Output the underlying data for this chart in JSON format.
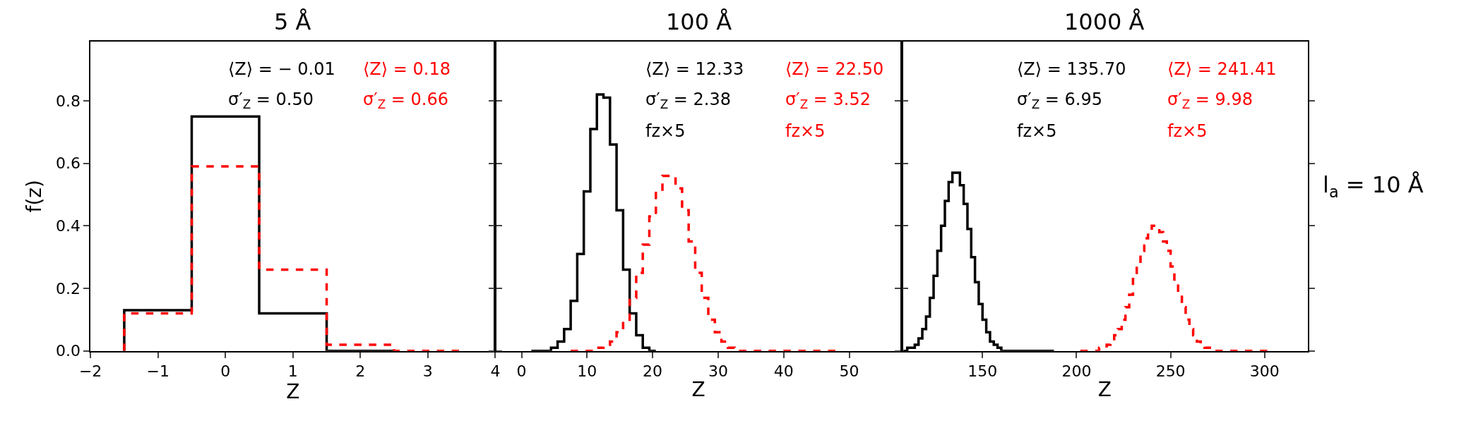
{
  "chart_data": [
    {
      "type": "step",
      "title": "5 Å",
      "xlabel": "Z",
      "ylabel": "f(z)",
      "xlim": [
        -2,
        4
      ],
      "xticks": [
        -2,
        -1,
        0,
        1,
        2,
        3,
        4
      ],
      "ylim": [
        0,
        0.99
      ],
      "yticks": [
        {
          "value": 0,
          "label": "0.0"
        },
        0.2,
        0.4,
        0.6,
        0.8
      ],
      "grid": false,
      "annotations": [
        "⟨Z⟩ = − 0.01",
        "σ′$_{Z}$ = 0.50",
        "⟨Z⟩ = 0.18",
        "σ′$_{Z}$ = 0.66"
      ],
      "series": [
        {
          "color": "#000000",
          "line_style": "solid",
          "x": [
            -1.5,
            -1.5,
            -0.5,
            0.5,
            1.5,
            2.5
          ],
          "values": [
            0.0,
            0.13,
            0.75,
            0.12,
            0.0,
            0.0
          ]
        },
        {
          "color": "#ff0000",
          "line_style": "dashed",
          "x": [
            -1.5,
            -1.5,
            -0.5,
            0.5,
            1.5,
            2.5,
            3.5
          ],
          "values": [
            0.0,
            0.12,
            0.59,
            0.26,
            0.02,
            0.0,
            0.0
          ]
        }
      ]
    },
    {
      "type": "step",
      "title": "100 Å",
      "xlabel": "Z",
      "xlim": [
        -4,
        58
      ],
      "xticks": [
        0,
        10,
        20,
        30,
        40,
        50
      ],
      "ylim": [
        0,
        0.99
      ],
      "yticks": [
        0,
        0.2,
        0.4,
        0.6,
        0.8
      ],
      "tick_labels": "x",
      "grid": false,
      "annotations": [
        "⟨Z⟩ = 12.33",
        "σ′$_{Z}$ = 2.38",
        "fz×5",
        "⟨Z⟩ = 22.50",
        "σ′$_{Z}$ = 3.52",
        "fz×5"
      ],
      "series": [
        {
          "color": "#000000",
          "line_style": "solid",
          "x": [
            1.5,
            4.5,
            5.5,
            6.5,
            7.5,
            8.5,
            9.5,
            10.5,
            11.5,
            12.5,
            13.5,
            14.5,
            15.5,
            16.5,
            17.5,
            18.5,
            19.5,
            20.5
          ],
          "values": [
            0.0,
            0.01,
            0.03,
            0.07,
            0.16,
            0.31,
            0.51,
            0.71,
            0.82,
            0.81,
            0.66,
            0.45,
            0.26,
            0.12,
            0.05,
            0.01,
            0.0,
            0.0
          ]
        },
        {
          "color": "#ff0000",
          "line_style": "dashed",
          "x": [
            7.5,
            11.5,
            12.5,
            13.5,
            14.5,
            15.5,
            16.5,
            17.5,
            18.5,
            19.5,
            20.5,
            21.5,
            22.5,
            23.5,
            24.5,
            25.5,
            26.5,
            27.5,
            28.5,
            29.5,
            30.5,
            31.5,
            32.5,
            48.5
          ],
          "values": [
            0.0,
            0.01,
            0.02,
            0.03,
            0.06,
            0.1,
            0.17,
            0.25,
            0.34,
            0.43,
            0.51,
            0.56,
            0.56,
            0.52,
            0.45,
            0.35,
            0.25,
            0.17,
            0.1,
            0.06,
            0.03,
            0.01,
            0.0,
            0.0
          ]
        }
      ]
    },
    {
      "type": "step",
      "title": "1000 Å",
      "xlabel": "Z",
      "xlim": [
        107,
        323
      ],
      "xticks": [
        150,
        200,
        250,
        300
      ],
      "ylim": [
        0,
        0.99
      ],
      "yticks": [
        0,
        0.2,
        0.4,
        0.6,
        0.8
      ],
      "tick_labels": "x",
      "grid": false,
      "annotations": [
        "⟨Z⟩ = 135.70",
        "σ′$_{Z}$ = 6.95",
        "fz×5",
        "⟨Z⟩ = 241.41",
        "σ′$_{Z}$ = 9.98",
        "fz×5"
      ],
      "series": [
        {
          "color": "#000000",
          "line_style": "solid",
          "x": [
            108,
            110,
            114,
            116,
            118,
            120,
            122,
            124,
            126,
            128,
            130,
            132,
            134,
            136,
            138,
            140,
            142,
            144,
            146,
            148,
            150,
            152,
            154,
            156,
            158,
            160,
            188
          ],
          "values": [
            0.0,
            0.01,
            0.02,
            0.04,
            0.07,
            0.11,
            0.17,
            0.24,
            0.32,
            0.4,
            0.48,
            0.54,
            0.57,
            0.57,
            0.53,
            0.47,
            0.39,
            0.3,
            0.22,
            0.15,
            0.1,
            0.06,
            0.03,
            0.02,
            0.01,
            0.0,
            0.0
          ]
        },
        {
          "color": "#ff0000",
          "line_style": "dashed",
          "x": [
            202,
            212,
            216,
            218,
            220,
            222,
            224,
            226,
            228,
            230,
            232,
            234,
            236,
            238,
            240,
            242,
            244,
            246,
            248,
            250,
            252,
            254,
            256,
            258,
            260,
            262,
            264,
            266,
            268,
            272,
            302
          ],
          "values": [
            0.0,
            0.01,
            0.02,
            0.03,
            0.05,
            0.07,
            0.1,
            0.14,
            0.18,
            0.23,
            0.28,
            0.32,
            0.36,
            0.38,
            0.4,
            0.4,
            0.38,
            0.35,
            0.32,
            0.27,
            0.22,
            0.18,
            0.14,
            0.1,
            0.07,
            0.05,
            0.03,
            0.02,
            0.01,
            0.0,
            0.0
          ]
        }
      ]
    },
    {
      "type": "other",
      "annotations": [
        "l$_{a}$ = 10 Å"
      ]
    }
  ]
}
